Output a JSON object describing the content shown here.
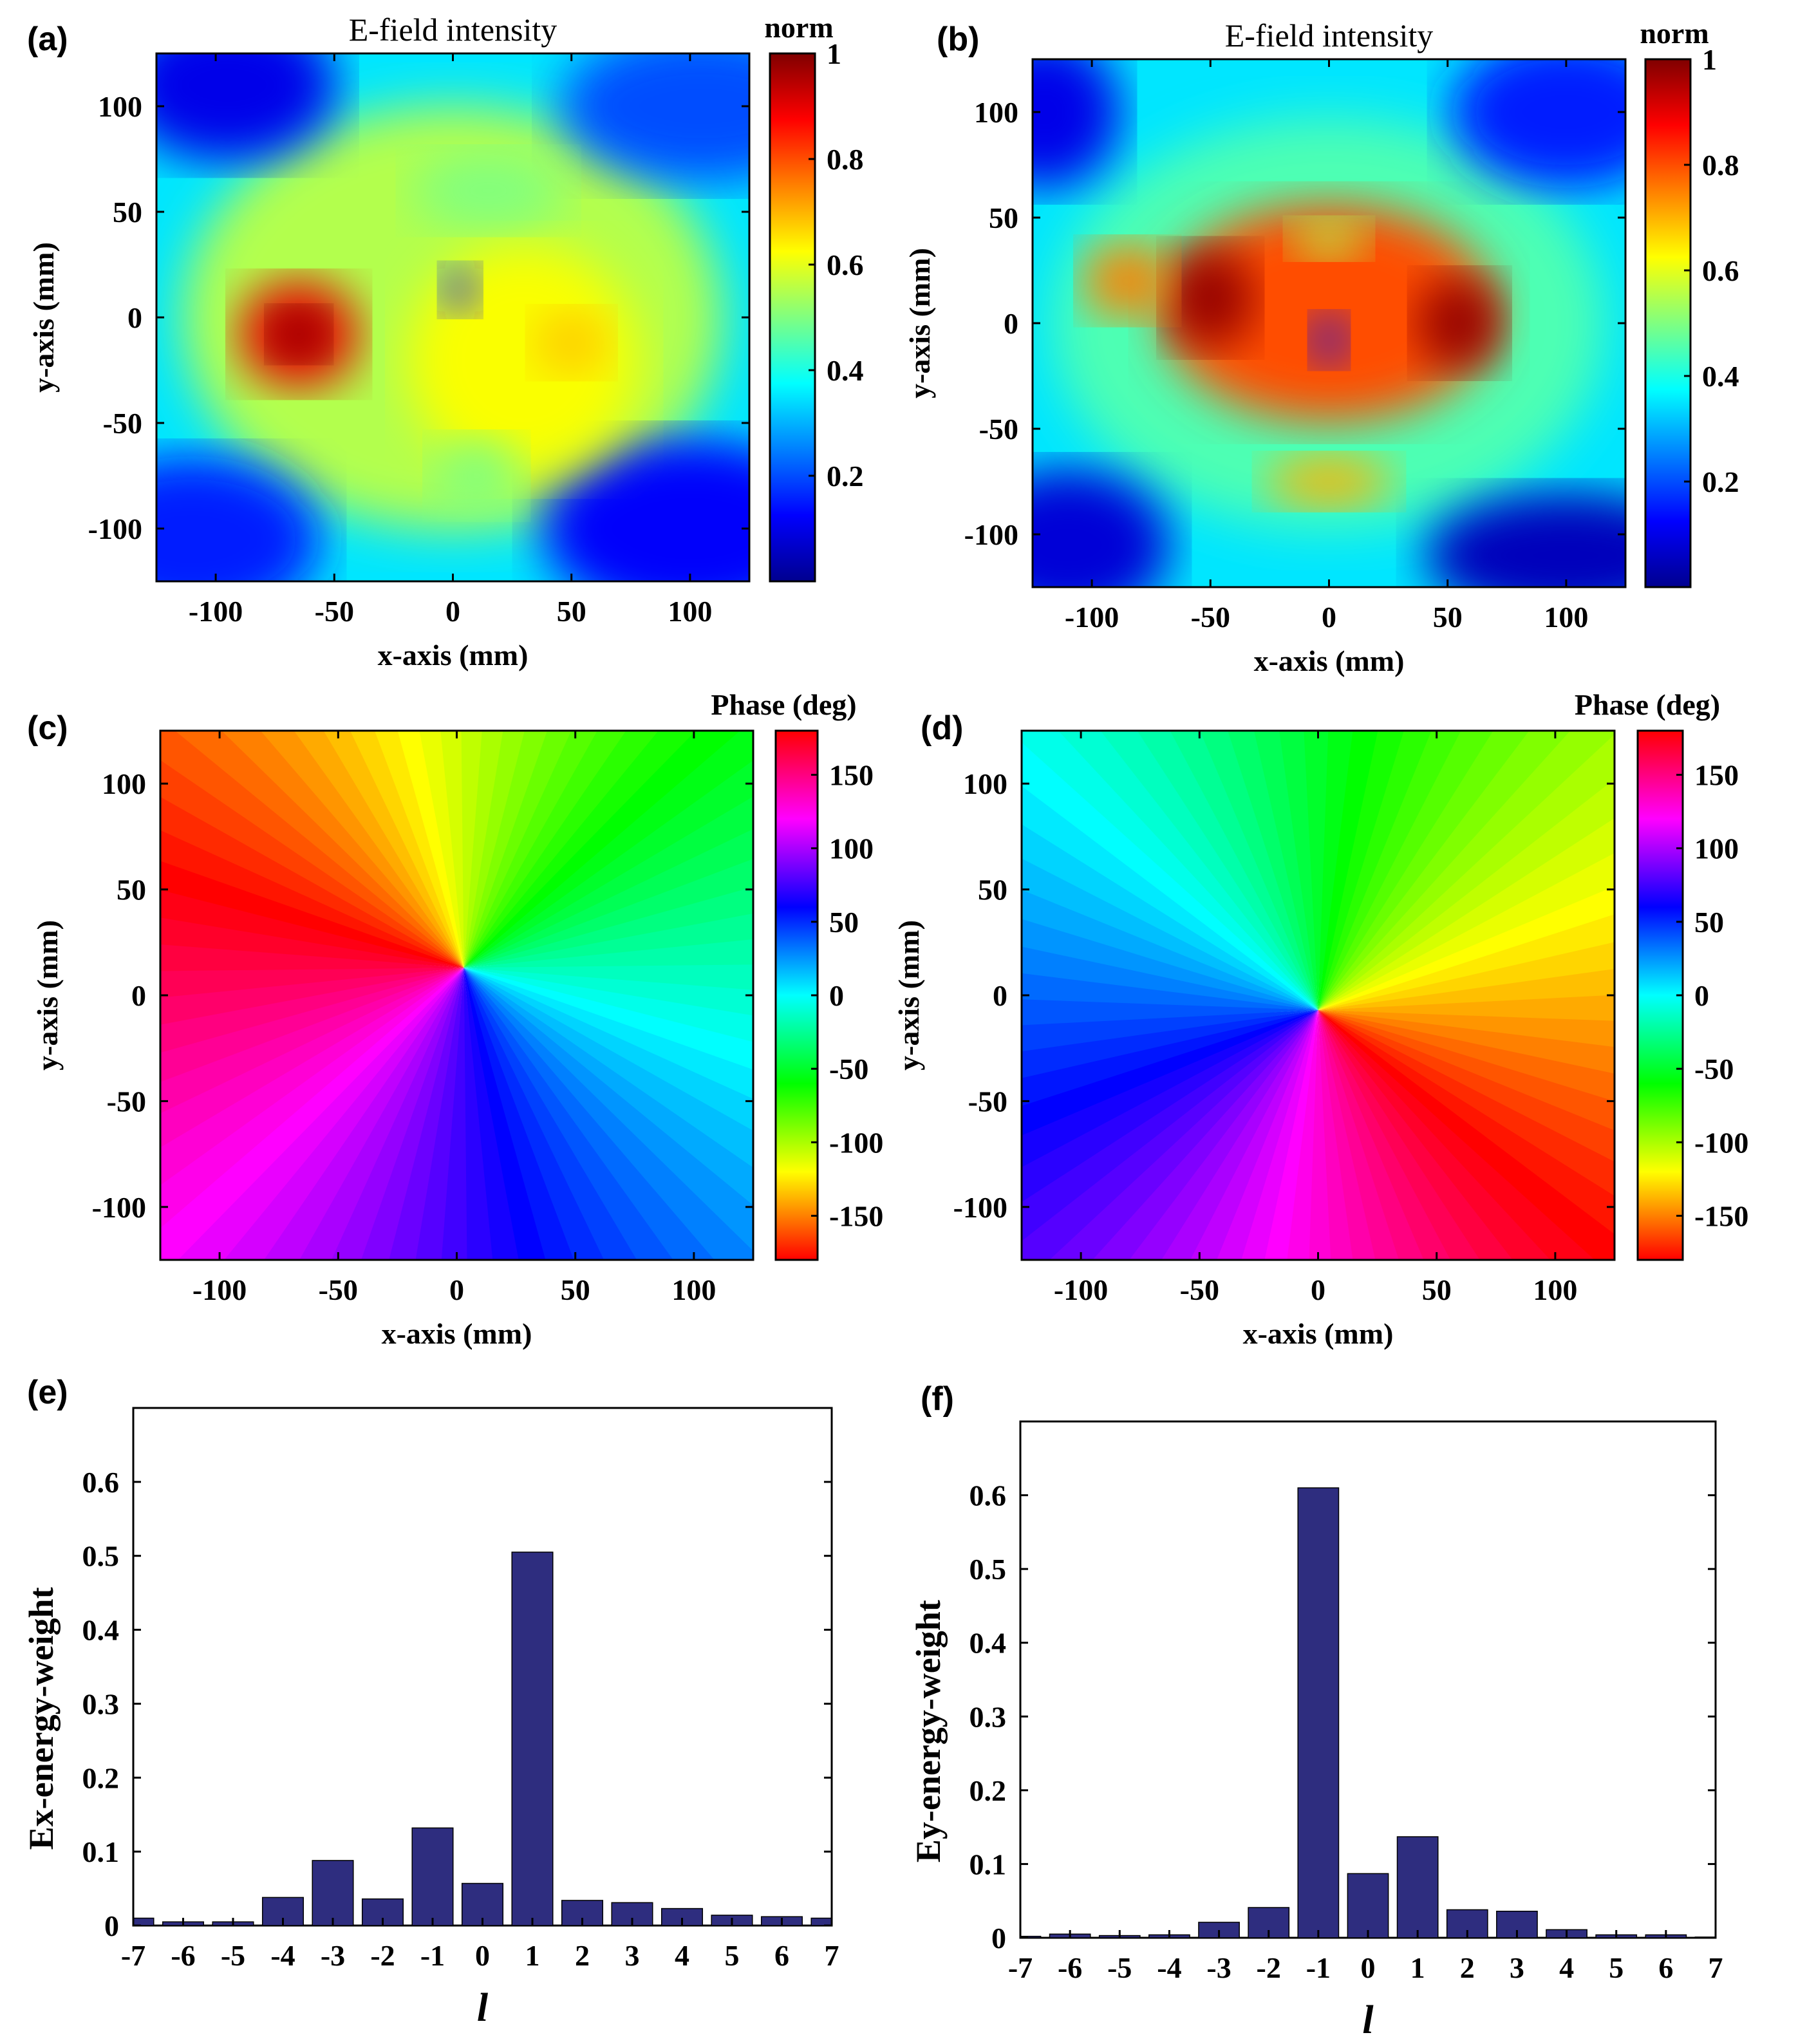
{
  "colors": {
    "bar": "#2e2d7f",
    "axis": "#000000",
    "jet": [
      "#00008f",
      "#0000ff",
      "#0080ff",
      "#00ffff",
      "#80ff80",
      "#ffff00",
      "#ff8000",
      "#ff0000",
      "#800000"
    ],
    "hsv": [
      "#ff0000",
      "#ff8000",
      "#ffff00",
      "#80ff00",
      "#00ff00",
      "#00ff80",
      "#00ffff",
      "#0080ff",
      "#0000ff",
      "#8000ff",
      "#ff00ff",
      "#ff0080",
      "#ff0000"
    ]
  },
  "chart_data": [
    {
      "panel": "(a)",
      "type": "heatmap",
      "title": "E-field intensity",
      "xlabel": "x-axis (mm)",
      "ylabel": "y-axis (mm)",
      "xlim": [
        -125,
        125
      ],
      "ylim": [
        -125,
        125
      ],
      "xticks": [
        -100,
        -50,
        0,
        50,
        100
      ],
      "yticks": [
        -100,
        -50,
        0,
        50,
        100
      ],
      "colorbar": {
        "label": "norm",
        "range": [
          0,
          1
        ],
        "ticks": [
          0.2,
          0.4,
          0.6,
          0.8,
          1
        ],
        "colormap": "jet"
      },
      "features": [
        {
          "kind": "peak",
          "x": -65,
          "y": -8,
          "value": 1.0
        },
        {
          "kind": "null",
          "x": 3,
          "y": 13,
          "value": 0.1
        },
        {
          "kind": "plateau",
          "x": 50,
          "y": -12,
          "value": 0.65
        }
      ]
    },
    {
      "panel": "(b)",
      "type": "heatmap",
      "title": "E-field intensity",
      "xlabel": "x-axis (mm)",
      "ylabel": "y-axis (mm)",
      "xlim": [
        -125,
        125
      ],
      "ylim": [
        -125,
        125
      ],
      "xticks": [
        -100,
        -50,
        0,
        50,
        100
      ],
      "yticks": [
        -100,
        -50,
        0,
        50,
        100
      ],
      "colorbar": {
        "label": "norm",
        "range": [
          0,
          1
        ],
        "ticks": [
          0.2,
          0.4,
          0.6,
          0.8,
          1
        ],
        "colormap": "jet"
      },
      "features": [
        {
          "kind": "peak",
          "x": -50,
          "y": 12,
          "value": 1.0
        },
        {
          "kind": "peak",
          "x": 55,
          "y": 0,
          "value": 0.98
        },
        {
          "kind": "null",
          "x": 0,
          "y": -8,
          "value": 0.1
        }
      ]
    },
    {
      "panel": "(c)",
      "type": "heatmap",
      "xlabel": "x-axis (mm)",
      "ylabel": "y-axis (mm)",
      "xlim": [
        -125,
        125
      ],
      "ylim": [
        -125,
        125
      ],
      "xticks": [
        -100,
        -50,
        0,
        50,
        100
      ],
      "yticks": [
        -100,
        -50,
        0,
        50,
        100
      ],
      "colorbar": {
        "label": "Phase (deg)",
        "range": [
          -180,
          180
        ],
        "ticks": [
          150,
          100,
          50,
          0,
          -50,
          -100,
          -150
        ],
        "colormap": "hsv"
      },
      "vortex": {
        "x": 3,
        "y": 13,
        "charge": 1
      }
    },
    {
      "panel": "(d)",
      "type": "heatmap",
      "xlabel": "x-axis (mm)",
      "ylabel": "y-axis (mm)",
      "xlim": [
        -125,
        125
      ],
      "ylim": [
        -125,
        125
      ],
      "xticks": [
        -100,
        -50,
        0,
        50,
        100
      ],
      "yticks": [
        -100,
        -50,
        0,
        50,
        100
      ],
      "colorbar": {
        "label": "Phase (deg)",
        "range": [
          -180,
          180
        ],
        "ticks": [
          150,
          100,
          50,
          0,
          -50,
          -100,
          -150
        ],
        "colormap": "hsv"
      },
      "vortex": {
        "x": 0,
        "y": -7,
        "charge": -1
      }
    },
    {
      "panel": "(e)",
      "type": "bar",
      "xlabel": "l",
      "ylabel": "Ex-energy-weight",
      "categories": [
        "-7",
        "-6",
        "-5",
        "-4",
        "-3",
        "-2",
        "-1",
        "0",
        "1",
        "2",
        "3",
        "4",
        "5",
        "6",
        "7"
      ],
      "values": [
        0.01,
        0.005,
        0.005,
        0.038,
        0.088,
        0.036,
        0.132,
        0.057,
        0.505,
        0.034,
        0.031,
        0.023,
        0.014,
        0.012,
        0.01
      ],
      "ylim": [
        0,
        0.7
      ],
      "yticks": [
        "0",
        "0.1",
        "0.2",
        "0.3",
        "0.4",
        "0.5",
        "0.6"
      ]
    },
    {
      "panel": "(f)",
      "type": "bar",
      "xlabel": "l",
      "ylabel": "Ey-energy-weight",
      "categories": [
        "-7",
        "-6",
        "-5",
        "-4",
        "-3",
        "-2",
        "-1",
        "0",
        "1",
        "2",
        "3",
        "4",
        "5",
        "6",
        "7"
      ],
      "values": [
        0.002,
        0.005,
        0.003,
        0.004,
        0.021,
        0.041,
        0.61,
        0.087,
        0.137,
        0.038,
        0.036,
        0.011,
        0.004,
        0.004,
        0.001
      ],
      "ylim": [
        0,
        0.7
      ],
      "yticks": [
        "0",
        "0.1",
        "0.2",
        "0.3",
        "0.4",
        "0.5",
        "0.6"
      ]
    }
  ]
}
